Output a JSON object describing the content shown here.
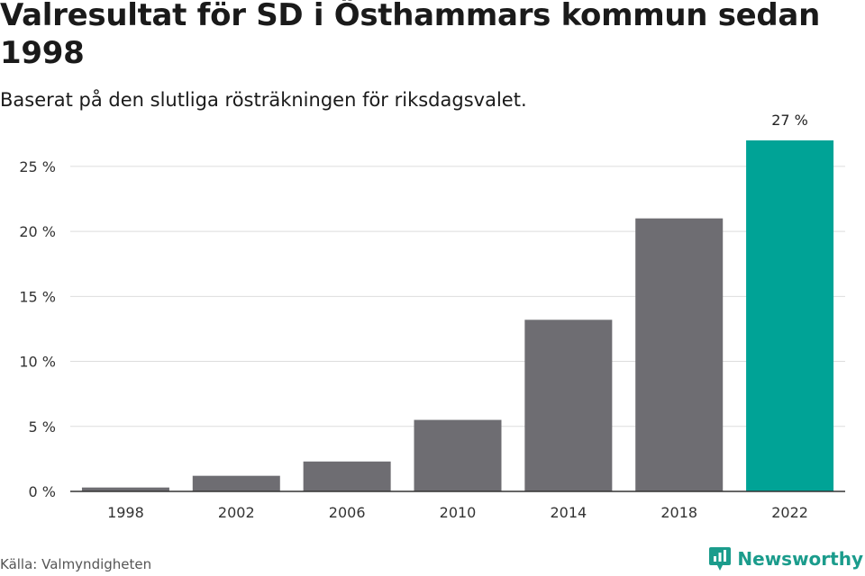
{
  "title": "Valresultat för SD i Östhammars kommun sedan 1998",
  "subtitle": "Baserat på den slutliga rösträkningen för riksdagsvalet.",
  "source": "Källa: Valmyndigheten",
  "brand": {
    "name": "Newsworthy",
    "icon": "newsworthy-logo-icon",
    "color": "#1b9c8c"
  },
  "colors": {
    "bar": "#6e6d72",
    "highlight": "#00a396",
    "grid": "#dddddd",
    "axis": "#333333"
  },
  "chart_data": {
    "type": "bar",
    "categories": [
      "1998",
      "2002",
      "2006",
      "2010",
      "2014",
      "2018",
      "2022"
    ],
    "values": [
      0.3,
      1.2,
      2.3,
      5.5,
      13.2,
      21.0,
      27.0
    ],
    "highlight_index": 6,
    "highlight_label": "27 %",
    "ylim": [
      0,
      27
    ],
    "yticks": [
      0,
      5,
      10,
      15,
      20,
      25
    ],
    "ytick_labels": [
      "0 %",
      "5 %",
      "10 %",
      "15 %",
      "20 %",
      "25 %"
    ],
    "grid": true,
    "legend": "none"
  }
}
